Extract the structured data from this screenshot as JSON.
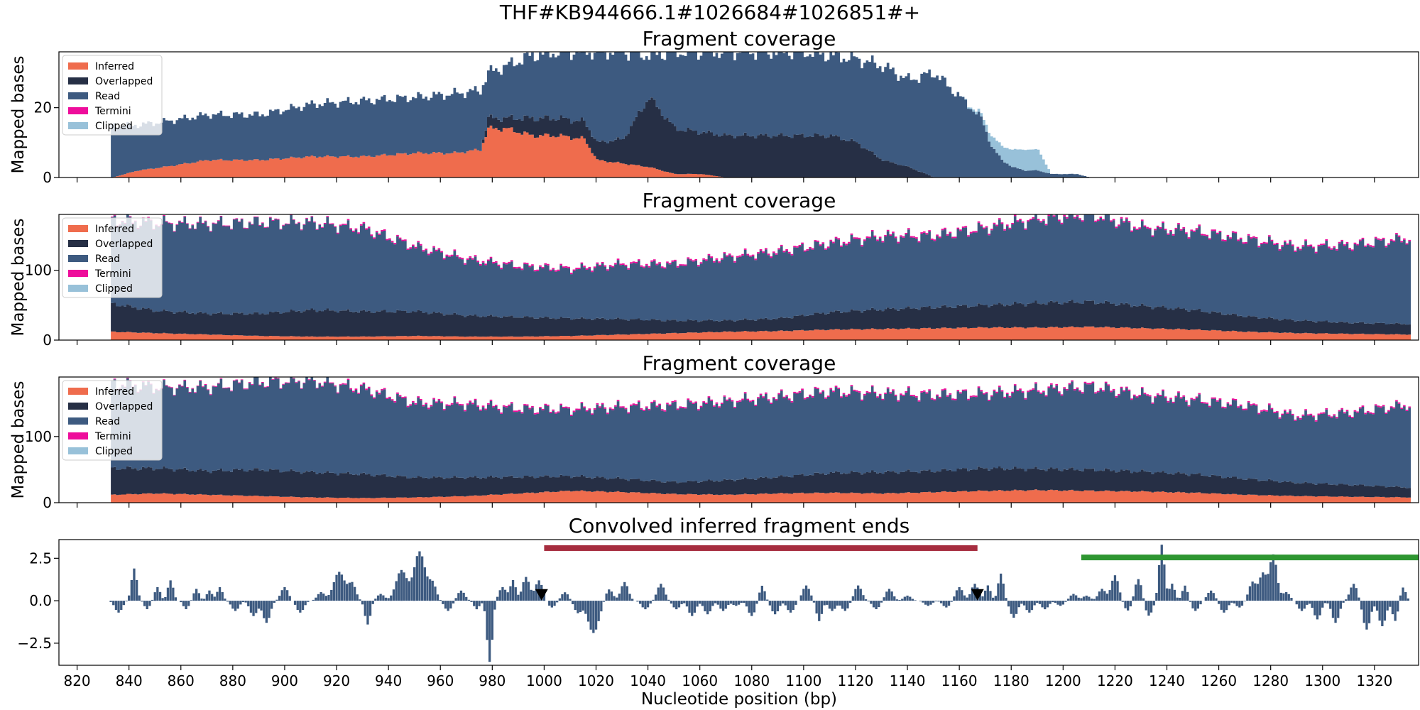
{
  "figure": {
    "suptitle": "THF#KB944666.1#1026684#1026851#+",
    "xlabel": "Nucleotide position (bp)"
  },
  "colors": {
    "inferred": "#ef6c4d",
    "overlapped": "#262f45",
    "read": "#3d5a80",
    "termini": "#ee0d9b",
    "clipped": "#98c1d9",
    "bar": "#3d5a80",
    "region_red": "#a62d3f",
    "region_green": "#2e9631",
    "marker": "#000000"
  },
  "chart_data": [
    {
      "type": "area",
      "title": "Fragment coverage",
      "ylabel": "Mapped bases",
      "xlim": [
        813,
        1337
      ],
      "ylim": [
        0,
        36
      ],
      "yticks": [
        0,
        20
      ],
      "legend": [
        "Inferred",
        "Overlapped",
        "Read",
        "Termini",
        "Clipped"
      ],
      "legend_position": "upper left",
      "x": [
        833,
        843,
        853,
        870,
        890,
        910,
        930,
        950,
        965,
        975,
        978,
        985,
        995,
        1005,
        1015,
        1020,
        1030,
        1040,
        1050,
        1060,
        1070,
        1080,
        1090,
        1100,
        1110,
        1120,
        1130,
        1140,
        1150,
        1160,
        1168,
        1172,
        1176,
        1180,
        1185,
        1190,
        1195,
        1200,
        1205,
        1210
      ],
      "inferred": [
        0,
        2,
        3,
        5,
        5,
        6,
        6,
        7,
        7,
        8,
        14,
        14,
        12,
        12,
        11,
        5,
        4,
        3,
        1,
        1,
        0,
        0,
        0,
        0,
        0,
        0,
        0,
        0,
        0,
        0,
        0,
        0,
        0,
        0,
        0,
        0,
        0,
        0,
        0,
        0
      ],
      "overlapped": [
        0,
        0,
        0,
        0,
        0,
        0,
        0,
        0,
        0,
        0,
        3,
        3,
        5,
        5,
        5,
        5,
        7,
        20,
        13,
        12,
        12,
        12,
        12,
        12,
        12,
        10,
        5,
        3,
        0,
        0,
        0,
        0,
        0,
        0,
        0,
        0,
        0,
        0,
        0,
        0
      ],
      "read": [
        15,
        13,
        13,
        13,
        13,
        15,
        16,
        16,
        17,
        17,
        13,
        15,
        18,
        19,
        20,
        26,
        25,
        12,
        22,
        23,
        24,
        24,
        24,
        24,
        23,
        24,
        27,
        25,
        30,
        23,
        17,
        9,
        5,
        3,
        2,
        2,
        1,
        1,
        1,
        0
      ],
      "termini": [
        0,
        0,
        0,
        0,
        0,
        0,
        0,
        0,
        0,
        0,
        0,
        0,
        0,
        0,
        0,
        0,
        0,
        0,
        0,
        0,
        0,
        0,
        0,
        0,
        0,
        0,
        0,
        0,
        0,
        0,
        0,
        0,
        0,
        0,
        0,
        0,
        0,
        0,
        0,
        0
      ],
      "clipped": [
        0,
        0,
        0,
        0,
        0,
        0,
        0,
        0,
        0,
        0,
        0,
        0,
        0,
        0,
        0,
        0,
        0,
        0,
        0,
        0,
        0,
        0,
        0,
        0,
        0,
        0,
        0,
        0,
        0,
        0,
        1,
        3,
        4,
        5,
        6,
        6,
        0,
        0,
        0,
        0
      ]
    },
    {
      "type": "area",
      "title": "Fragment coverage",
      "ylabel": "Mapped bases",
      "xlim": [
        813,
        1337
      ],
      "ylim": [
        0,
        180
      ],
      "yticks": [
        0,
        100
      ],
      "legend": [
        "Inferred",
        "Overlapped",
        "Read",
        "Termini",
        "Clipped"
      ],
      "legend_position": "upper left",
      "x": [
        833,
        850,
        870,
        890,
        910,
        930,
        950,
        970,
        990,
        1010,
        1030,
        1050,
        1070,
        1090,
        1110,
        1130,
        1150,
        1170,
        1190,
        1210,
        1230,
        1250,
        1270,
        1290,
        1310,
        1333
      ],
      "inferred": [
        12,
        10,
        8,
        6,
        5,
        5,
        6,
        5,
        5,
        6,
        8,
        10,
        12,
        13,
        15,
        16,
        17,
        18,
        18,
        19,
        17,
        15,
        12,
        10,
        9,
        8
      ],
      "overlapped": [
        40,
        32,
        30,
        32,
        38,
        36,
        35,
        30,
        28,
        25,
        22,
        18,
        16,
        18,
        25,
        28,
        30,
        32,
        35,
        36,
        32,
        28,
        22,
        18,
        16,
        15
      ],
      "read": [
        120,
        125,
        128,
        130,
        125,
        118,
        92,
        80,
        72,
        70,
        78,
        80,
        90,
        95,
        98,
        104,
        102,
        110,
        120,
        125,
        111,
        112,
        110,
        105,
        110,
        122
      ],
      "termini": [
        1,
        1,
        1,
        1,
        1,
        2,
        2,
        2,
        2,
        2,
        2,
        2,
        2,
        2,
        2,
        2,
        2,
        2,
        2,
        2,
        2,
        2,
        2,
        2,
        2,
        2
      ],
      "clipped": [
        0,
        0,
        0,
        0,
        0,
        0,
        0,
        0,
        0,
        0,
        0,
        0,
        0,
        0,
        0,
        0,
        0,
        0,
        0,
        0,
        0,
        0,
        0,
        0,
        0,
        0
      ]
    },
    {
      "type": "area",
      "title": "Fragment coverage",
      "ylabel": "Mapped bases",
      "xlim": [
        813,
        1337
      ],
      "ylim": [
        0,
        190
      ],
      "yticks": [
        0,
        100
      ],
      "legend": [
        "Inferred",
        "Overlapped",
        "Read",
        "Termini",
        "Clipped"
      ],
      "legend_position": "upper left",
      "x": [
        833,
        850,
        870,
        890,
        910,
        930,
        950,
        970,
        990,
        1010,
        1030,
        1050,
        1070,
        1090,
        1110,
        1130,
        1150,
        1170,
        1190,
        1210,
        1230,
        1250,
        1270,
        1290,
        1310,
        1333
      ],
      "inferred": [
        12,
        14,
        12,
        10,
        8,
        7,
        8,
        10,
        14,
        18,
        16,
        13,
        12,
        14,
        15,
        14,
        16,
        18,
        19,
        18,
        17,
        15,
        12,
        10,
        9,
        8
      ],
      "overlapped": [
        40,
        38,
        36,
        40,
        38,
        36,
        30,
        28,
        25,
        22,
        20,
        18,
        22,
        25,
        30,
        32,
        32,
        34,
        32,
        32,
        30,
        28,
        24,
        20,
        18,
        15
      ],
      "read": [
        128,
        122,
        126,
        132,
        138,
        128,
        112,
        110,
        102,
        100,
        108,
        115,
        118,
        120,
        122,
        118,
        114,
        112,
        118,
        125,
        115,
        112,
        110,
        100,
        108,
        124
      ],
      "termini": [
        1,
        1,
        1,
        1,
        1,
        2,
        2,
        2,
        2,
        2,
        2,
        2,
        2,
        2,
        2,
        2,
        2,
        2,
        2,
        2,
        2,
        2,
        2,
        2,
        2,
        2
      ],
      "clipped": [
        0,
        0,
        0,
        0,
        0,
        0,
        0,
        0,
        0,
        0,
        0,
        0,
        0,
        0,
        0,
        0,
        0,
        0,
        0,
        0,
        0,
        0,
        0,
        0,
        0,
        0
      ]
    },
    {
      "type": "bar",
      "title": "Convolved inferred fragment ends",
      "xlim": [
        813,
        1337
      ],
      "ylim": [
        -3.8,
        3.6
      ],
      "yticks": [
        -2.5,
        0.0,
        2.5
      ],
      "xticks": [
        820,
        840,
        860,
        880,
        900,
        920,
        940,
        960,
        980,
        1000,
        1020,
        1040,
        1060,
        1080,
        1100,
        1120,
        1140,
        1160,
        1180,
        1200,
        1220,
        1240,
        1260,
        1280,
        1300,
        1320
      ],
      "x_range": [
        833,
        1333
      ],
      "peaks": [
        {
          "x": 836,
          "h": -0.7,
          "w": 2
        },
        {
          "x": 842,
          "h": 1.9,
          "w": 1.5
        },
        {
          "x": 847,
          "h": -0.5,
          "w": 1.5
        },
        {
          "x": 851,
          "h": 0.8,
          "w": 1.5
        },
        {
          "x": 856,
          "h": 1.2,
          "w": 1.5
        },
        {
          "x": 862,
          "h": -0.5,
          "w": 1.5
        },
        {
          "x": 866,
          "h": 0.7,
          "w": 1.5
        },
        {
          "x": 871,
          "h": 0.6,
          "w": 1.5
        },
        {
          "x": 875,
          "h": 0.8,
          "w": 1.5
        },
        {
          "x": 881,
          "h": -0.6,
          "w": 2
        },
        {
          "x": 888,
          "h": -0.9,
          "w": 2
        },
        {
          "x": 893,
          "h": -1.3,
          "w": 2
        },
        {
          "x": 900,
          "h": 0.8,
          "w": 2
        },
        {
          "x": 906,
          "h": -0.7,
          "w": 2
        },
        {
          "x": 914,
          "h": 0.5,
          "w": 2
        },
        {
          "x": 921,
          "h": 1.7,
          "w": 3
        },
        {
          "x": 926,
          "h": 1.0,
          "w": 2
        },
        {
          "x": 932,
          "h": -1.4,
          "w": 1.5
        },
        {
          "x": 937,
          "h": 0.4,
          "w": 2
        },
        {
          "x": 945,
          "h": 1.8,
          "w": 3
        },
        {
          "x": 952,
          "h": 2.9,
          "w": 3
        },
        {
          "x": 957,
          "h": 1.0,
          "w": 2
        },
        {
          "x": 963,
          "h": -0.6,
          "w": 2
        },
        {
          "x": 968,
          "h": 0.6,
          "w": 2
        },
        {
          "x": 974,
          "h": -0.5,
          "w": 1.5
        },
        {
          "x": 979,
          "h": -3.6,
          "w": 1.5
        },
        {
          "x": 984,
          "h": 0.8,
          "w": 2
        },
        {
          "x": 988,
          "h": 1.2,
          "w": 1.5
        },
        {
          "x": 993,
          "h": 1.4,
          "w": 2
        },
        {
          "x": 998,
          "h": 1.2,
          "w": 2
        },
        {
          "x": 1003,
          "h": -0.4,
          "w": 2
        },
        {
          "x": 1008,
          "h": 0.5,
          "w": 2
        },
        {
          "x": 1013,
          "h": -0.7,
          "w": 2
        },
        {
          "x": 1019,
          "h": -1.9,
          "w": 3
        },
        {
          "x": 1025,
          "h": 0.7,
          "w": 2
        },
        {
          "x": 1031,
          "h": 1.1,
          "w": 2
        },
        {
          "x": 1039,
          "h": -0.5,
          "w": 2
        },
        {
          "x": 1045,
          "h": 1.0,
          "w": 2
        },
        {
          "x": 1051,
          "h": -0.5,
          "w": 2
        },
        {
          "x": 1057,
          "h": -0.9,
          "w": 2
        },
        {
          "x": 1063,
          "h": -0.8,
          "w": 2
        },
        {
          "x": 1069,
          "h": -0.6,
          "w": 2
        },
        {
          "x": 1074,
          "h": -0.3,
          "w": 2
        },
        {
          "x": 1080,
          "h": -0.9,
          "w": 2
        },
        {
          "x": 1084,
          "h": 0.9,
          "w": 1.5
        },
        {
          "x": 1089,
          "h": -0.8,
          "w": 2
        },
        {
          "x": 1095,
          "h": -0.7,
          "w": 2
        },
        {
          "x": 1101,
          "h": 0.9,
          "w": 2
        },
        {
          "x": 1106,
          "h": -1.2,
          "w": 1.5
        },
        {
          "x": 1111,
          "h": -0.6,
          "w": 2
        },
        {
          "x": 1116,
          "h": -0.6,
          "w": 2
        },
        {
          "x": 1121,
          "h": 0.9,
          "w": 2
        },
        {
          "x": 1128,
          "h": -0.5,
          "w": 2
        },
        {
          "x": 1133,
          "h": 0.7,
          "w": 2
        },
        {
          "x": 1140,
          "h": 0.3,
          "w": 2
        },
        {
          "x": 1148,
          "h": -0.3,
          "w": 2
        },
        {
          "x": 1155,
          "h": -0.4,
          "w": 2
        },
        {
          "x": 1160,
          "h": 0.8,
          "w": 2
        },
        {
          "x": 1166,
          "h": 1.0,
          "w": 2
        },
        {
          "x": 1171,
          "h": 0.9,
          "w": 1.5
        },
        {
          "x": 1176,
          "h": 1.6,
          "w": 1.5
        },
        {
          "x": 1181,
          "h": -1.0,
          "w": 2
        },
        {
          "x": 1187,
          "h": -0.7,
          "w": 2
        },
        {
          "x": 1193,
          "h": -0.5,
          "w": 2
        },
        {
          "x": 1199,
          "h": -0.3,
          "w": 2
        },
        {
          "x": 1204,
          "h": 0.4,
          "w": 2
        },
        {
          "x": 1209,
          "h": 0.3,
          "w": 2
        },
        {
          "x": 1215,
          "h": 0.7,
          "w": 2
        },
        {
          "x": 1220,
          "h": 1.5,
          "w": 2
        },
        {
          "x": 1225,
          "h": -0.6,
          "w": 2
        },
        {
          "x": 1229,
          "h": 1.3,
          "w": 2
        },
        {
          "x": 1233,
          "h": -0.9,
          "w": 2
        },
        {
          "x": 1238,
          "h": 3.3,
          "w": 1.5
        },
        {
          "x": 1242,
          "h": 1.0,
          "w": 1.5
        },
        {
          "x": 1247,
          "h": 0.9,
          "w": 1.5
        },
        {
          "x": 1251,
          "h": -0.6,
          "w": 2
        },
        {
          "x": 1257,
          "h": 0.6,
          "w": 2
        },
        {
          "x": 1262,
          "h": -0.7,
          "w": 2
        },
        {
          "x": 1268,
          "h": -0.4,
          "w": 2
        },
        {
          "x": 1273,
          "h": 1.1,
          "w": 2
        },
        {
          "x": 1277,
          "h": 1.6,
          "w": 2
        },
        {
          "x": 1281,
          "h": 2.7,
          "w": 2
        },
        {
          "x": 1286,
          "h": 0.5,
          "w": 2
        },
        {
          "x": 1292,
          "h": -0.6,
          "w": 2
        },
        {
          "x": 1298,
          "h": -1.1,
          "w": 2
        },
        {
          "x": 1305,
          "h": -1.3,
          "w": 2
        },
        {
          "x": 1312,
          "h": 1.0,
          "w": 2
        },
        {
          "x": 1317,
          "h": -1.7,
          "w": 2
        },
        {
          "x": 1323,
          "h": -1.5,
          "w": 2
        },
        {
          "x": 1328,
          "h": -1.2,
          "w": 1.5
        },
        {
          "x": 1331,
          "h": 0.8,
          "w": 1.5
        }
      ],
      "regions": [
        {
          "x_start": 1000,
          "x_end": 1167,
          "y": 3.1,
          "color": "#a62d3f"
        },
        {
          "x_start": 1207,
          "x_end": 1337,
          "y": 2.55,
          "color": "#2e9631"
        }
      ],
      "markers": [
        {
          "x": 999,
          "y": 0.35
        },
        {
          "x": 1167,
          "y": 0.35
        }
      ]
    }
  ]
}
